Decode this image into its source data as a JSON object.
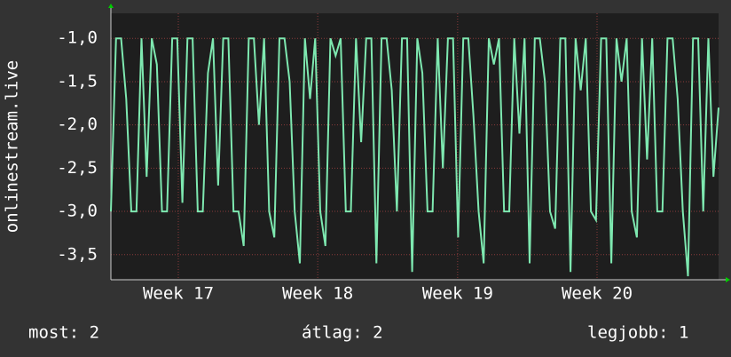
{
  "chart_data": {
    "type": "line",
    "y_label": "onlinestream.live",
    "color": "#7ee8b0",
    "values": [
      -3,
      -1,
      -1,
      -1.7,
      -3,
      -3,
      -1,
      -2.6,
      -1,
      -1.3,
      -3,
      -3,
      -1,
      -1,
      -2.9,
      -1,
      -1,
      -3,
      -3,
      -1.4,
      -1,
      -2.7,
      -1,
      -1,
      -3,
      -3,
      -3.4,
      -1,
      -1,
      -2,
      -1,
      -3,
      -3.3,
      -1,
      -1,
      -1.5,
      -3,
      -3.6,
      -1,
      -1.7,
      -1,
      -3,
      -3.4,
      -1,
      -1.2,
      -1,
      -3,
      -3,
      -1,
      -2.2,
      -1,
      -1,
      -3.6,
      -1,
      -1,
      -1.6,
      -3,
      -1,
      -1,
      -3.7,
      -1,
      -1.4,
      -3,
      -3,
      -1,
      -2.5,
      -1,
      -1,
      -3.3,
      -1,
      -1,
      -1.9,
      -3,
      -3.6,
      -1,
      -1.3,
      -1,
      -3,
      -3,
      -1,
      -2.1,
      -1,
      -3.6,
      -1,
      -1,
      -1.5,
      -3,
      -3.2,
      -1,
      -1,
      -3.7,
      -1,
      -1.6,
      -1,
      -3,
      -3.1,
      -1,
      -1,
      -3.6,
      -1,
      -1.5,
      -1,
      -3,
      -3.3,
      -1,
      -2.4,
      -1,
      -3,
      -3,
      -1,
      -1,
      -1.7,
      -3,
      -3.75,
      -1,
      -1,
      -3,
      -1,
      -2.6,
      -1.8
    ],
    "xlim": [
      0,
      119
    ],
    "xticks": [
      {
        "value": 13.2,
        "label": "Week 17"
      },
      {
        "value": 40.5,
        "label": "Week 18"
      },
      {
        "value": 67.9,
        "label": "Week 19"
      },
      {
        "value": 95.2,
        "label": "Week 20"
      }
    ],
    "ylim": [
      -3.79,
      -0.71
    ],
    "yticks": [
      {
        "value": -1,
        "label": "-1,0"
      },
      {
        "value": -1.5,
        "label": "-1,5"
      },
      {
        "value": -2,
        "label": "-2,0"
      },
      {
        "value": -2.5,
        "label": "-2,5"
      },
      {
        "value": -3,
        "label": "-3,0"
      },
      {
        "value": -3.5,
        "label": "-3,5"
      }
    ],
    "grid": true,
    "footer": {
      "current": "most: 2",
      "average": "átlag: 2",
      "best": "legjobb: 1"
    }
  }
}
